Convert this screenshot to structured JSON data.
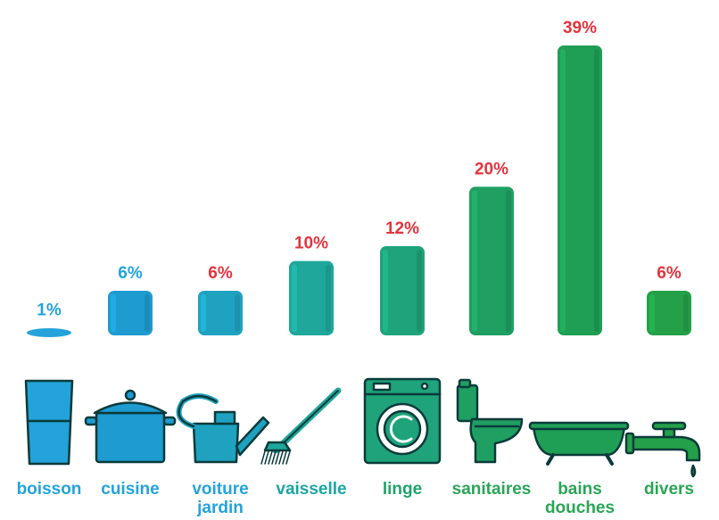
{
  "chart_data": {
    "type": "bar",
    "title": "",
    "xlabel": "",
    "ylabel": "",
    "ylim": [
      0,
      39
    ],
    "grid": false,
    "legend": "none",
    "categories": [
      {
        "label": [
          "boisson"
        ],
        "icon": "glass-icon",
        "value": 1,
        "value_label": "1%",
        "bar_color": "#23a3d9",
        "label_color": "#23a3d9",
        "value_color": "#23a3d9"
      },
      {
        "label": [
          "cuisine"
        ],
        "icon": "cooking-pot-icon",
        "value": 6,
        "value_label": "6%",
        "bar_color": "#1e9bd0",
        "label_color": "#23a3d9",
        "value_color": "#23a3d9"
      },
      {
        "label": [
          "voiture",
          "jardin"
        ],
        "icon": "watering-can-icon",
        "value": 6,
        "value_label": "6%",
        "bar_color": "#1fa2c0",
        "label_color": "#23a3d9",
        "value_color": "#e2343c"
      },
      {
        "label": [
          "vaisselle"
        ],
        "icon": "dish-brush-icon",
        "value": 10,
        "value_label": "10%",
        "bar_color": "#1ea79a",
        "label_color": "#1aa5a3",
        "value_color": "#e2343c"
      },
      {
        "label": [
          "linge"
        ],
        "icon": "washing-machine-icon",
        "value": 12,
        "value_label": "12%",
        "bar_color": "#1ea37a",
        "label_color": "#1fa36a",
        "value_color": "#e2343c"
      },
      {
        "label": [
          "sanitaires"
        ],
        "icon": "toilet-icon",
        "value": 20,
        "value_label": "20%",
        "bar_color": "#1f9f62",
        "label_color": "#2aa556",
        "value_color": "#e2343c"
      },
      {
        "label": [
          "bains",
          "douches"
        ],
        "icon": "bathtub-icon",
        "value": 39,
        "value_label": "39%",
        "bar_color": "#1f9e55",
        "label_color": "#2aa556",
        "value_color": "#e2343c"
      },
      {
        "label": [
          "divers"
        ],
        "icon": "water-tap-icon",
        "value": 6,
        "value_label": "6%",
        "bar_color": "#24a049",
        "label_color": "#2aa556",
        "value_color": "#e2343c"
      }
    ]
  }
}
